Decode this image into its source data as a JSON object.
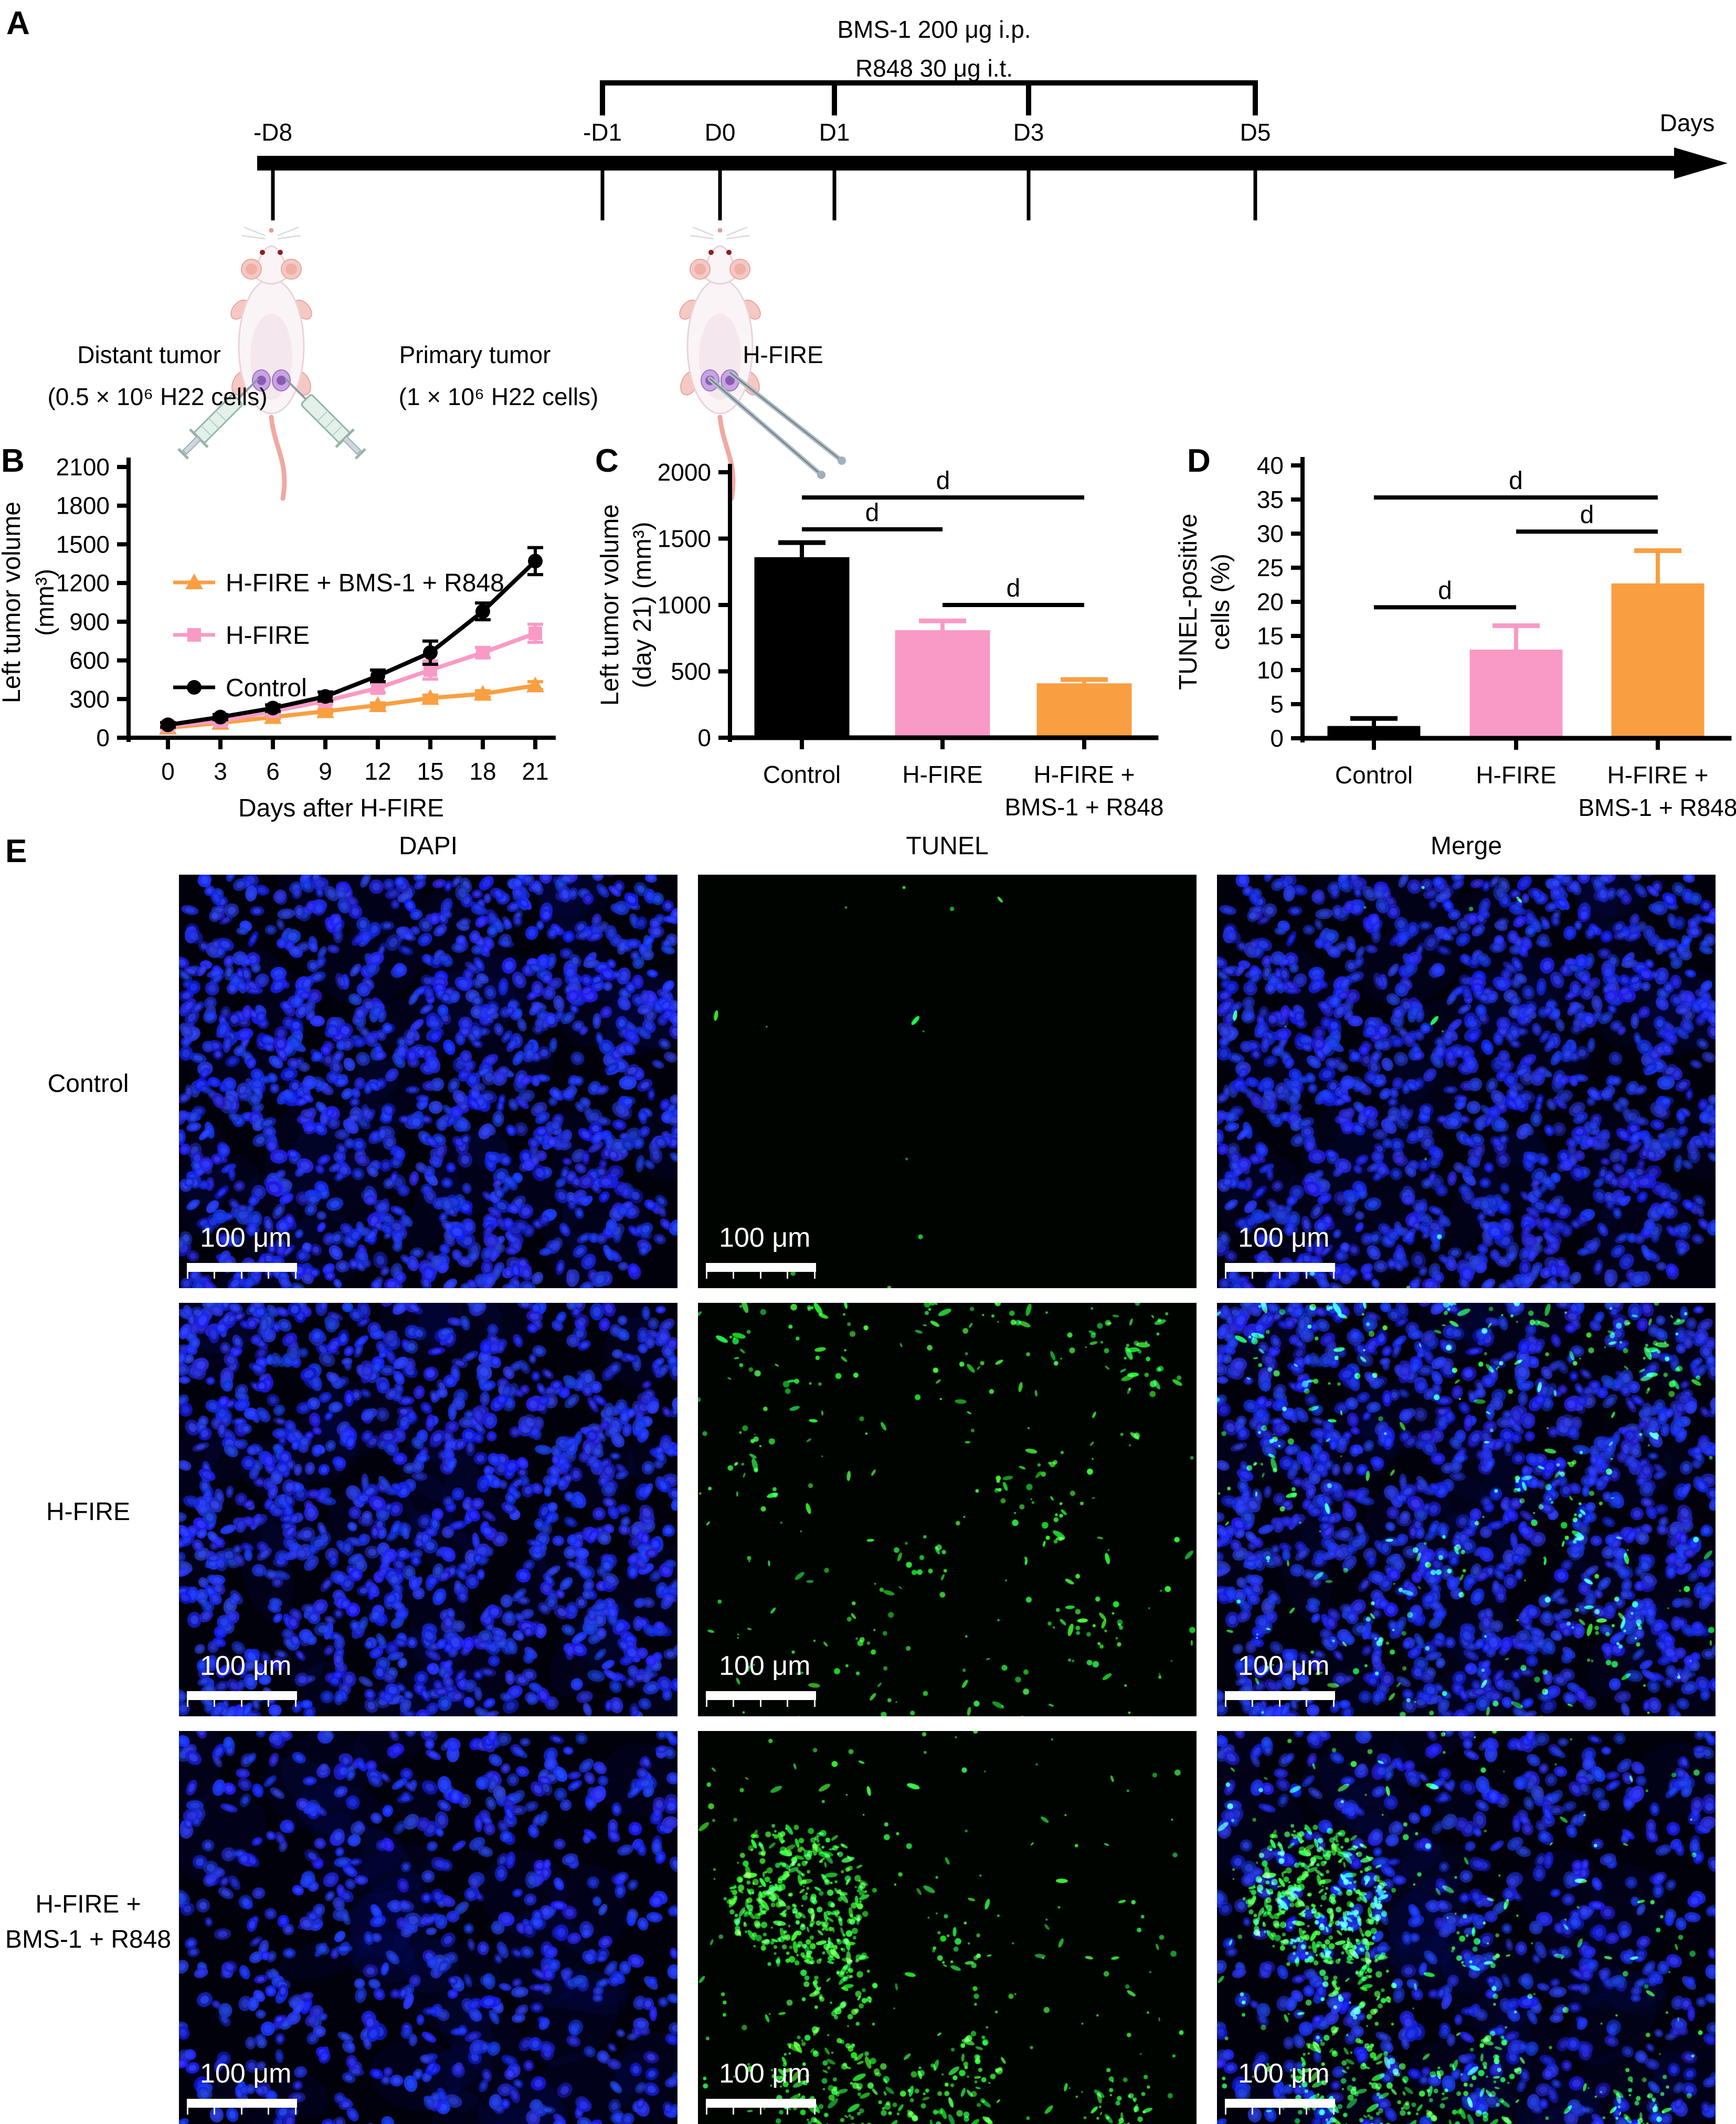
{
  "panelA": {
    "label": "A",
    "treatment_line1": "BMS-1 200 μg i.p.",
    "treatment_line2": "R848 30 μg i.t.",
    "days_axis_label": "Days",
    "timeline_ticks": [
      "-D8",
      "-D1",
      "D0",
      "D1",
      "D3",
      "D5"
    ],
    "treatment_days": [
      "-D1",
      "D1",
      "D3",
      "D5"
    ],
    "mouse1_left_label": "Distant tumor",
    "mouse1_left_sub": "(0.5 × 10⁶ H22 cells)",
    "mouse1_right_label": "Primary tumor",
    "mouse1_right_sub": "(1 × 10⁶ H22 cells)",
    "mouse2_label": "H-FIRE"
  },
  "chart_data": [
    {
      "panel": "B",
      "type": "line",
      "x": [
        0,
        3,
        6,
        9,
        12,
        15,
        18,
        21
      ],
      "xlabel": "Days after H-FIRE",
      "ylabel_lines": [
        "Left tumor volume",
        "(mm³)"
      ],
      "ylim": [
        0,
        2100
      ],
      "ytick_step": 300,
      "grid": false,
      "legend_position": "upper-left-inside",
      "series": [
        {
          "name": "H-FIRE + BMS-1 + R848",
          "color": "#F99F42",
          "marker": "triangle",
          "values": [
            78,
            115,
            160,
            205,
            252,
            308,
            340,
            405
          ],
          "errors": [
            8,
            10,
            12,
            15,
            18,
            22,
            25,
            30
          ]
        },
        {
          "name": "H-FIRE",
          "color": "#F99AC6",
          "marker": "square",
          "values": [
            90,
            130,
            205,
            285,
            385,
            525,
            660,
            810
          ],
          "errors": [
            12,
            15,
            18,
            25,
            35,
            70,
            40,
            70
          ]
        },
        {
          "name": "Control",
          "color": "#000000",
          "marker": "circle",
          "values": [
            100,
            160,
            230,
            320,
            480,
            660,
            980,
            1370
          ],
          "errors": [
            18,
            20,
            25,
            35,
            45,
            90,
            65,
            105
          ]
        }
      ]
    },
    {
      "panel": "C",
      "type": "bar",
      "categories": [
        [
          "Control"
        ],
        [
          "H-FIRE"
        ],
        [
          "H-FIRE +",
          "BMS-1 + R848"
        ]
      ],
      "values": [
        1360,
        810,
        410
      ],
      "errors": [
        110,
        70,
        28
      ],
      "colors": [
        "#000000",
        "#F99AC6",
        "#F99F42"
      ],
      "ylabel_lines": [
        "Left tumor volume",
        "(day 21) (mm³)"
      ],
      "ylim": [
        0,
        2000
      ],
      "ytick_step": 500,
      "significance": [
        {
          "a": 0,
          "b": 2,
          "y": 1810,
          "label": "d"
        },
        {
          "a": 0,
          "b": 1,
          "y": 1570,
          "label": "d"
        },
        {
          "a": 1,
          "b": 2,
          "y": 1000,
          "label": "d"
        }
      ]
    },
    {
      "panel": "D",
      "type": "bar",
      "categories": [
        [
          "Control"
        ],
        [
          "H-FIRE"
        ],
        [
          "H-FIRE +",
          "BMS-1 + R848"
        ]
      ],
      "values": [
        1.8,
        13,
        22.7
      ],
      "errors": [
        1.1,
        3.5,
        4.8
      ],
      "colors": [
        "#000000",
        "#F99AC6",
        "#F99F42"
      ],
      "ylabel_lines": [
        "TUNEL-positive",
        "cells (%)"
      ],
      "ylim": [
        0,
        40
      ],
      "ytick_step": 5,
      "significance": [
        {
          "a": 0,
          "b": 2,
          "y": 35.3,
          "label": "d"
        },
        {
          "a": 1,
          "b": 2,
          "y": 30.3,
          "label": "d"
        },
        {
          "a": 0,
          "b": 1,
          "y": 19.2,
          "label": "d"
        }
      ]
    }
  ],
  "panelE": {
    "label": "E",
    "col_headers": [
      "DAPI",
      "TUNEL",
      "Merge"
    ],
    "row_labels": [
      [
        "Control"
      ],
      [
        "H-FIRE"
      ],
      [
        "H-FIRE +",
        "BMS-1 + R848"
      ]
    ],
    "scale_bar_label": "100 μm",
    "colors": {
      "dapi_nucleus": "#1a2ae0",
      "tunel_signal": "#35e045",
      "background": "#01010c"
    },
    "rows": [
      {
        "group": "Control",
        "dapi_count": 1000,
        "tunel_scatter": 12,
        "tunel_clusters": []
      },
      {
        "group": "H-FIRE",
        "dapi_count": 930,
        "tunel_scatter": 200,
        "tunel_clusters": [
          {
            "x": 0.18,
            "y": 0.06,
            "r": 0.14,
            "n": 45
          },
          {
            "x": 0.55,
            "y": 0.05,
            "r": 0.12,
            "n": 32
          },
          {
            "x": 0.88,
            "y": 0.12,
            "r": 0.1,
            "n": 28
          },
          {
            "x": 0.1,
            "y": 0.35,
            "r": 0.05,
            "n": 10
          },
          {
            "x": 0.68,
            "y": 0.48,
            "r": 0.09,
            "n": 26
          },
          {
            "x": 0.45,
            "y": 0.62,
            "r": 0.05,
            "n": 10
          },
          {
            "x": 0.78,
            "y": 0.78,
            "r": 0.08,
            "n": 20
          },
          {
            "x": 0.3,
            "y": 0.82,
            "r": 0.07,
            "n": 12
          }
        ]
      },
      {
        "group": "H-FIRE + BMS-1 + R848",
        "dapi_count": 520,
        "tunel_scatter": 190,
        "tunel_clusters": [
          {
            "x": 0.2,
            "y": 0.4,
            "r": 0.14,
            "n": 320
          },
          {
            "x": 0.28,
            "y": 0.6,
            "r": 0.08,
            "n": 70
          },
          {
            "x": 0.26,
            "y": 0.86,
            "r": 0.12,
            "n": 130
          },
          {
            "x": 0.47,
            "y": 0.95,
            "r": 0.12,
            "n": 90
          },
          {
            "x": 0.56,
            "y": 0.8,
            "r": 0.06,
            "n": 25
          },
          {
            "x": 0.52,
            "y": 0.52,
            "r": 0.05,
            "n": 18
          },
          {
            "x": 0.85,
            "y": 0.9,
            "r": 0.08,
            "n": 35
          }
        ]
      }
    ]
  }
}
